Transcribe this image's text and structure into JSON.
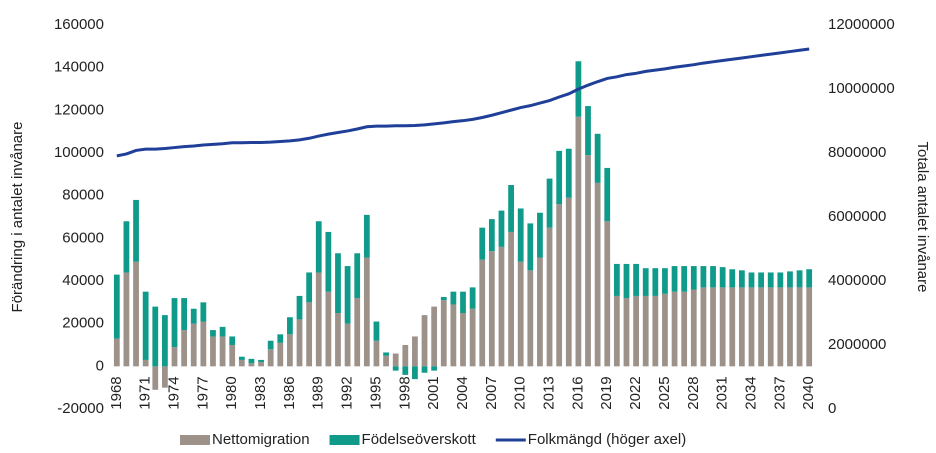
{
  "chart_data": {
    "type": "bar",
    "y_label": "Förändring i antalet invånare",
    "y2_label": "Totala antalet invånare",
    "legend": "bottom",
    "x": [
      1968,
      1969,
      1970,
      1971,
      1972,
      1973,
      1974,
      1975,
      1976,
      1977,
      1978,
      1979,
      1980,
      1981,
      1982,
      1983,
      1984,
      1985,
      1986,
      1987,
      1988,
      1989,
      1990,
      1991,
      1992,
      1993,
      1994,
      1995,
      1996,
      1997,
      1998,
      1999,
      2000,
      2001,
      2002,
      2003,
      2004,
      2005,
      2006,
      2007,
      2008,
      2009,
      2010,
      2011,
      2012,
      2013,
      2014,
      2015,
      2016,
      2017,
      2018,
      2019,
      2020,
      2021,
      2022,
      2023,
      2024,
      2025,
      2026,
      2027,
      2028,
      2029,
      2030,
      2031,
      2032,
      2033,
      2034,
      2035,
      2036,
      2037,
      2038,
      2039,
      2040
    ],
    "xticks": [
      1968,
      1971,
      1974,
      1977,
      1980,
      1983,
      1986,
      1989,
      1992,
      1995,
      1998,
      2001,
      2004,
      2007,
      2010,
      2013,
      2016,
      2019,
      2022,
      2025,
      2028,
      2031,
      2034,
      2037,
      2040
    ],
    "ylim": [
      -20000,
      160000
    ],
    "yticks": [
      -20000,
      0,
      20000,
      40000,
      60000,
      80000,
      100000,
      120000,
      140000,
      160000
    ],
    "y2lim": [
      0,
      12000000
    ],
    "y2ticks": [
      0,
      2000000,
      4000000,
      6000000,
      8000000,
      10000000,
      12000000
    ],
    "series": [
      {
        "name": "Nettomigration",
        "type": "bar",
        "color": "#9d928a",
        "values": [
          13000,
          44000,
          49000,
          3000,
          -11000,
          -10000,
          9000,
          17000,
          20000,
          21000,
          14000,
          14000,
          10000,
          3000,
          1500,
          2000,
          8000,
          11000,
          15000,
          22000,
          30000,
          44000,
          35000,
          25000,
          20000,
          32000,
          51000,
          12000,
          5000,
          6000,
          10000,
          14000,
          24000,
          28000,
          31000,
          29000,
          25000,
          27000,
          50000,
          54000,
          56000,
          63000,
          49000,
          45000,
          51000,
          65000,
          76000,
          79000,
          117000,
          99000,
          86000,
          68000,
          33000,
          32000,
          33000,
          33000,
          33000,
          34000,
          35000,
          35000,
          36000,
          37000,
          37000,
          37000,
          37000,
          37000,
          37000,
          37000,
          37000,
          37000,
          37000,
          37000,
          37000
        ]
      },
      {
        "name": "Födelseöverskott",
        "type": "bar",
        "color": "#0f9a8a",
        "values": [
          30000,
          24000,
          29000,
          32000,
          28000,
          24000,
          23000,
          15000,
          7000,
          9000,
          3000,
          4500,
          4000,
          1500,
          2000,
          1000,
          4000,
          4000,
          8000,
          11000,
          14000,
          24000,
          28000,
          28000,
          27000,
          21000,
          20000,
          9000,
          1500,
          -2000,
          -4000,
          -6000,
          -3000,
          -2000,
          1500,
          6000,
          10000,
          10000,
          15000,
          15000,
          17000,
          22000,
          25000,
          22000,
          21000,
          23000,
          25000,
          23000,
          26000,
          23000,
          23000,
          25000,
          15000,
          16000,
          15000,
          13000,
          13000,
          12000,
          12000,
          12000,
          11000,
          10000,
          10000,
          9500,
          8500,
          8000,
          7000,
          7000,
          7000,
          7000,
          7500,
          8000,
          8500
        ]
      },
      {
        "name": "Folkmängd (höger axel)",
        "type": "line",
        "axis": "y2",
        "color": "#1f3f99",
        "values": [
          7910000,
          7970000,
          8080000,
          8120000,
          8120000,
          8140000,
          8170000,
          8200000,
          8220000,
          8250000,
          8270000,
          8290000,
          8320000,
          8320000,
          8330000,
          8330000,
          8340000,
          8360000,
          8380000,
          8410000,
          8460000,
          8530000,
          8590000,
          8640000,
          8690000,
          8750000,
          8820000,
          8840000,
          8840000,
          8850000,
          8850000,
          8860000,
          8880000,
          8910000,
          8940000,
          8980000,
          9010000,
          9050000,
          9110000,
          9180000,
          9260000,
          9340000,
          9420000,
          9480000,
          9560000,
          9640000,
          9750000,
          9850000,
          9995000,
          10120000,
          10230000,
          10330000,
          10380000,
          10450000,
          10490000,
          10550000,
          10590000,
          10630000,
          10680000,
          10720000,
          10760000,
          10810000,
          10850000,
          10890000,
          10930000,
          10970000,
          11010000,
          11050000,
          11090000,
          11130000,
          11170000,
          11210000,
          11250000
        ]
      }
    ]
  }
}
